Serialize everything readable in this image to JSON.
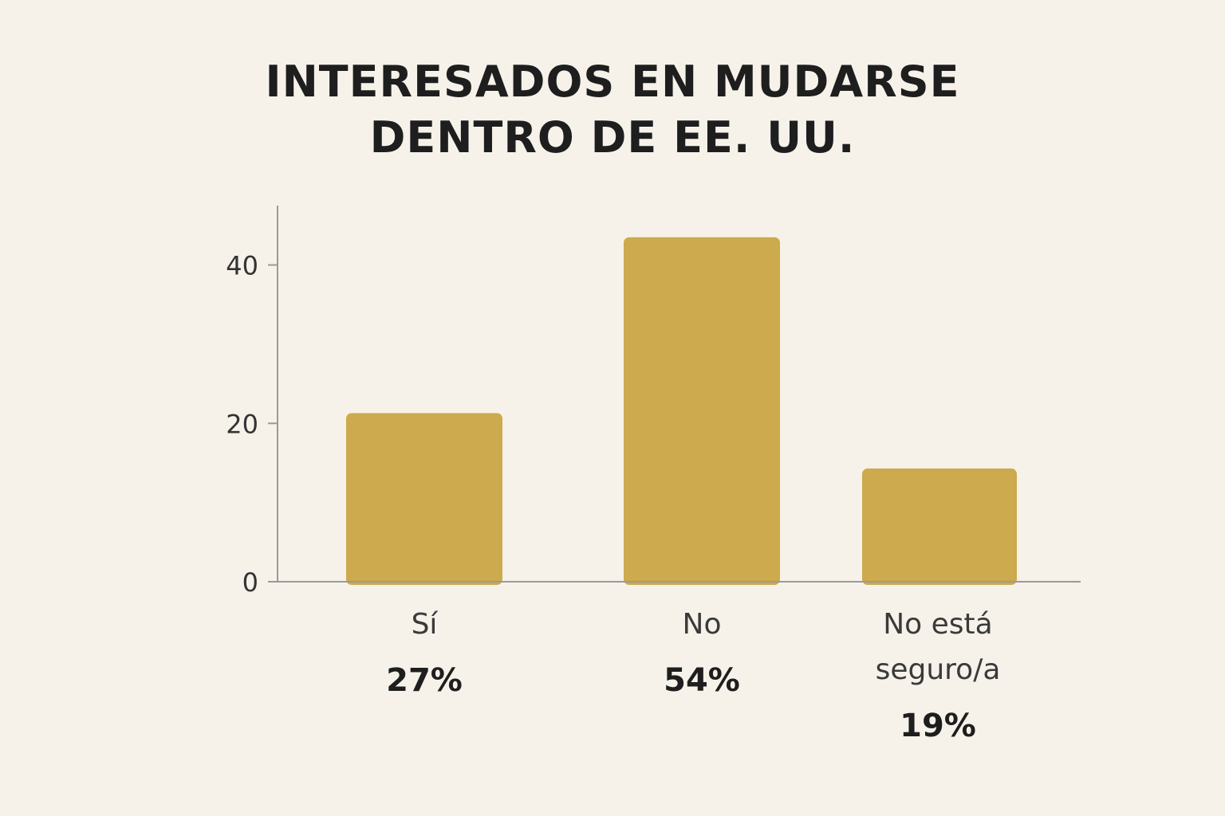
{
  "chart_data": {
    "type": "bar",
    "title_lines": [
      "INTERESADOS EN MUDARSE",
      "DENTRO DE EE. UU."
    ],
    "categories": [
      {
        "label_lines": [
          "Sí"
        ],
        "percent_label": "27%",
        "value": 21.3
      },
      {
        "label_lines": [
          "No"
        ],
        "percent_label": "54%",
        "value": 43.5
      },
      {
        "label_lines": [
          "No está",
          "seguro/a"
        ],
        "percent_label": "19%",
        "value": 14.3
      }
    ],
    "y_ticks": [
      0,
      20,
      40
    ],
    "ylim": [
      0,
      47.5
    ],
    "xlabel": "",
    "ylabel": "",
    "grid": false,
    "bar_color": "#ccaa4d",
    "axis_color": "#9a9a9a"
  }
}
